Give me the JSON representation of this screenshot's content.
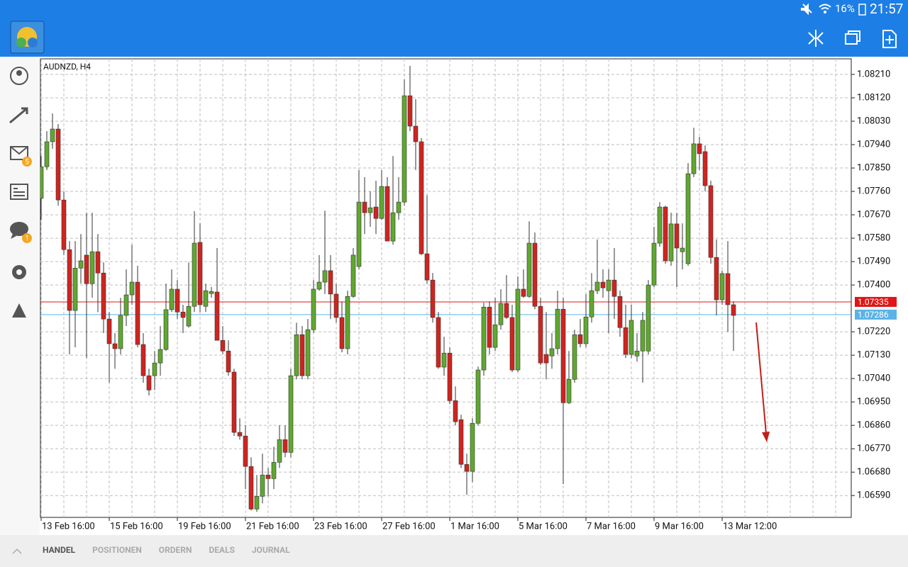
{
  "status_bar": {
    "battery": "16%",
    "time": "21:57"
  },
  "sidebar": {
    "mail_badge": "5",
    "chat_badge": "1"
  },
  "chart_data": {
    "type": "candlestick",
    "title": "AUDNZD, H4",
    "categories": [
      "13 Feb 16:00",
      null,
      null,
      null,
      null,
      null,
      null,
      null,
      null,
      null,
      null,
      null,
      "15 Feb 16:00",
      null,
      null,
      null,
      null,
      null,
      null,
      null,
      null,
      null,
      null,
      null,
      "19 Feb 16:00",
      null,
      null,
      null,
      null,
      null,
      null,
      null,
      null,
      null,
      null,
      null,
      "21 Feb 16:00",
      null,
      null,
      null,
      null,
      null,
      null,
      null,
      null,
      null,
      null,
      null,
      "23 Feb 16:00",
      null,
      null,
      null,
      null,
      null,
      null,
      null,
      null,
      null,
      null,
      null,
      "27 Feb 16:00",
      null,
      null,
      null,
      null,
      null,
      null,
      null,
      null,
      null,
      null,
      null,
      "1 Mar 16:00",
      null,
      null,
      null,
      null,
      null,
      null,
      null,
      null,
      null,
      null,
      null,
      "5 Mar 16:00",
      null,
      null,
      null,
      null,
      null,
      null,
      null,
      null,
      null,
      null,
      null,
      "7 Mar 16:00",
      null,
      null,
      null,
      null,
      null,
      null,
      null,
      null,
      null,
      null,
      null,
      "9 Mar 16:00",
      null,
      null,
      null,
      null,
      null,
      null,
      null,
      null,
      null,
      null,
      null,
      "13 Mar 12:00",
      null,
      null
    ],
    "ohlc": [
      [
        1.07733,
        1.07896,
        1.07651,
        1.07855
      ],
      [
        1.07855,
        1.07992,
        1.07842,
        1.07951
      ],
      [
        1.07951,
        1.0806,
        1.07924,
        1.08
      ],
      [
        1.08,
        1.08019,
        1.07705,
        1.07727
      ],
      [
        1.07727,
        1.0776,
        1.07515,
        1.07536
      ],
      [
        1.07536,
        1.07569,
        1.07133,
        1.07302
      ],
      [
        1.07302,
        1.07569,
        1.0716,
        1.07465
      ],
      [
        1.07465,
        1.07596,
        1.07405,
        1.07493
      ],
      [
        1.07515,
        1.07678,
        1.07119,
        1.07405
      ],
      [
        1.07405,
        1.07678,
        1.07351,
        1.07528
      ],
      [
        1.07528,
        1.07596,
        1.07296,
        1.07446
      ],
      [
        1.07446,
        1.07487,
        1.07215,
        1.07269
      ],
      [
        1.07269,
        1.07296,
        1.07024,
        1.07174
      ],
      [
        1.07174,
        1.07215,
        1.07078,
        1.07155
      ],
      [
        1.07155,
        1.07351,
        1.07133,
        1.07283
      ],
      [
        1.07283,
        1.0746,
        1.07242,
        1.07362
      ],
      [
        1.07362,
        1.07555,
        1.07324,
        1.07411
      ],
      [
        1.07411,
        1.07474,
        1.0716,
        1.07171
      ],
      [
        1.07171,
        1.07215,
        1.07024,
        1.07051
      ],
      [
        1.07051,
        1.07078,
        1.06975,
        1.06996
      ],
      [
        1.07051,
        1.07146,
        1.06996,
        1.071
      ],
      [
        1.071,
        1.07242,
        1.07051,
        1.07152
      ],
      [
        1.07152,
        1.07405,
        1.07146,
        1.07305
      ],
      [
        1.07305,
        1.0746,
        1.07296,
        1.07384
      ],
      [
        1.07384,
        1.07419,
        1.07269,
        1.07296
      ],
      [
        1.07296,
        1.07324,
        1.07215,
        1.07275
      ],
      [
        1.07242,
        1.07487,
        1.07236,
        1.07318
      ],
      [
        1.07318,
        1.07684,
        1.07296,
        1.07561
      ],
      [
        1.07564,
        1.07637,
        1.07296,
        1.07324
      ],
      [
        1.07318,
        1.07405,
        1.07296,
        1.07378
      ],
      [
        1.07367,
        1.07392,
        1.07351,
        1.07375
      ],
      [
        1.07373,
        1.07542,
        1.07187,
        1.07187
      ],
      [
        1.07187,
        1.07242,
        1.07133,
        1.07146
      ],
      [
        1.07146,
        1.07187,
        1.07051,
        1.07065
      ],
      [
        1.07065,
        1.07078,
        1.06819,
        1.06833
      ],
      [
        1.06833,
        1.06887,
        1.06805,
        1.06819
      ],
      [
        1.06819,
        1.0686,
        1.06615,
        1.06702
      ],
      [
        1.06702,
        1.06737,
        1.06533,
        1.06538
      ],
      [
        1.06538,
        1.06669,
        1.06527,
        1.06587
      ],
      [
        1.06587,
        1.06751,
        1.0656,
        1.06669
      ],
      [
        1.06669,
        1.06696,
        1.06587,
        1.06655
      ],
      [
        1.06655,
        1.06778,
        1.06615,
        1.06718
      ],
      [
        1.06718,
        1.0686,
        1.06696,
        1.06805
      ],
      [
        1.06805,
        1.0686,
        1.06737,
        1.06756
      ],
      [
        1.06756,
        1.07078,
        1.06737,
        1.07051
      ],
      [
        1.07051,
        1.07255,
        1.07037,
        1.07209
      ],
      [
        1.07209,
        1.07242,
        1.07037,
        1.07051
      ],
      [
        1.07051,
        1.07269,
        1.07037,
        1.07228
      ],
      [
        1.07228,
        1.07419,
        1.07215,
        1.07384
      ],
      [
        1.07384,
        1.07515,
        1.07378,
        1.07411
      ],
      [
        1.07411,
        1.07686,
        1.07365,
        1.07455
      ],
      [
        1.07455,
        1.07515,
        1.07269,
        1.07365
      ],
      [
        1.07365,
        1.07405,
        1.07255,
        1.07275
      ],
      [
        1.07275,
        1.07337,
        1.07141,
        1.07155
      ],
      [
        1.07155,
        1.07378,
        1.07133,
        1.07356
      ],
      [
        1.07356,
        1.07542,
        1.07351,
        1.07515
      ],
      [
        1.07471,
        1.07842,
        1.0746,
        1.07719
      ],
      [
        1.07719,
        1.07815,
        1.07596,
        1.07678
      ],
      [
        1.07678,
        1.0776,
        1.07624,
        1.07697
      ],
      [
        1.077,
        1.07801,
        1.07596,
        1.07656
      ],
      [
        1.07656,
        1.07842,
        1.07651,
        1.07779
      ],
      [
        1.07779,
        1.07815,
        1.07569,
        1.07569
      ],
      [
        1.07569,
        1.07896,
        1.07555,
        1.07678
      ],
      [
        1.07678,
        1.07815,
        1.07651,
        1.07719
      ],
      [
        1.07719,
        1.08191,
        1.07705,
        1.08128
      ],
      [
        1.08128,
        1.08243,
        1.07992,
        1.08011
      ],
      [
        1.08011,
        1.08115,
        1.07842,
        1.07951
      ],
      [
        1.07951,
        1.07965,
        1.07515,
        1.0752
      ],
      [
        1.0752,
        1.07746,
        1.07405,
        1.07419
      ],
      [
        1.07419,
        1.07446,
        1.07255,
        1.07275
      ],
      [
        1.07275,
        1.07296,
        1.07078,
        1.07084
      ],
      [
        1.07084,
        1.07201,
        1.07051,
        1.07138
      ],
      [
        1.07138,
        1.0716,
        1.06942,
        1.06955
      ],
      [
        1.06955,
        1.0701,
        1.0686,
        1.06874
      ],
      [
        1.06882,
        1.06901,
        1.06696,
        1.0671
      ],
      [
        1.0671,
        1.06751,
        1.06593,
        1.06683
      ],
      [
        1.06683,
        1.06887,
        1.06642,
        1.06868
      ],
      [
        1.06868,
        1.07086,
        1.0686,
        1.07073
      ],
      [
        1.07073,
        1.07332,
        1.07051,
        1.07315
      ],
      [
        1.07315,
        1.07337,
        1.07133,
        1.0716
      ],
      [
        1.0716,
        1.07351,
        1.07146,
        1.07247
      ],
      [
        1.07247,
        1.07384,
        1.07228,
        1.07329
      ],
      [
        1.07329,
        1.07438,
        1.07269,
        1.07275
      ],
      [
        1.07275,
        1.07324,
        1.07065,
        1.07073
      ],
      [
        1.07073,
        1.07433,
        1.07065,
        1.07384
      ],
      [
        1.07384,
        1.0746,
        1.07351,
        1.07356
      ],
      [
        1.07356,
        1.07645,
        1.07351,
        1.07561
      ],
      [
        1.07561,
        1.07602,
        1.07307,
        1.07318
      ],
      [
        1.07318,
        1.07351,
        1.07092,
        1.071
      ],
      [
        1.07133,
        1.07296,
        1.07037,
        1.071
      ],
      [
        1.07127,
        1.07215,
        1.07078,
        1.07155
      ],
      [
        1.07155,
        1.07378,
        1.07133,
        1.07307
      ],
      [
        1.07307,
        1.07351,
        1.06634,
        1.06947
      ],
      [
        1.06947,
        1.07146,
        1.06942,
        1.07037
      ],
      [
        1.07037,
        1.07228,
        1.07024,
        1.07209
      ],
      [
        1.07209,
        1.07269,
        1.0716,
        1.07174
      ],
      [
        1.07174,
        1.07365,
        1.0716,
        1.07277
      ],
      [
        1.07277,
        1.07446,
        1.07255,
        1.07378
      ],
      [
        1.07378,
        1.07575,
        1.07365,
        1.07411
      ],
      [
        1.07411,
        1.0746,
        1.07351,
        1.07389
      ],
      [
        1.07378,
        1.0746,
        1.07215,
        1.07419
      ],
      [
        1.07419,
        1.07542,
        1.07269,
        1.07356
      ],
      [
        1.07356,
        1.07378,
        1.07201,
        1.07236
      ],
      [
        1.07236,
        1.07324,
        1.07119,
        1.07133
      ],
      [
        1.07133,
        1.07324,
        1.07119,
        1.07264
      ],
      [
        1.07127,
        1.07215,
        1.07105,
        1.07146
      ],
      [
        1.07146,
        1.07296,
        1.07024,
        1.07264
      ],
      [
        1.07146,
        1.07419,
        1.07133,
        1.074
      ],
      [
        1.074,
        1.07624,
        1.07392,
        1.07561
      ],
      [
        1.07561,
        1.07719,
        1.07547,
        1.077
      ],
      [
        1.077,
        1.07705,
        1.07482,
        1.07493
      ],
      [
        1.07493,
        1.07678,
        1.07474,
        1.07635
      ],
      [
        1.07635,
        1.07678,
        1.07392,
        1.07542
      ],
      [
        1.07528,
        1.07637,
        1.0746,
        1.07542
      ],
      [
        1.07482,
        1.07869,
        1.07474,
        1.07828
      ],
      [
        1.07828,
        1.08005,
        1.07815,
        1.07943
      ],
      [
        1.07943,
        1.0797,
        1.07842,
        1.07905
      ],
      [
        1.07913,
        1.07937,
        1.0776,
        1.07782
      ],
      [
        1.07782,
        1.07801,
        1.07482,
        1.07506
      ],
      [
        1.07506,
        1.07575,
        1.07283,
        1.07343
      ],
      [
        1.07343,
        1.07455,
        1.07324,
        1.07444
      ],
      [
        1.07444,
        1.07569,
        1.0722,
        1.07324
      ],
      [
        1.07324,
        1.07337,
        1.07146,
        1.07283
      ]
    ],
    "up_color": "#5fa82f",
    "down_color": "#d0241f",
    "ylim": [
      1.06506,
      1.0827
    ],
    "yticks": [
      {
        "value": 1.0821,
        "label": "1.08210"
      },
      {
        "value": 1.0812,
        "label": "1.08120"
      },
      {
        "value": 1.0803,
        "label": "1.08030"
      },
      {
        "value": 1.0794,
        "label": "1.07940"
      },
      {
        "value": 1.0785,
        "label": "1.07850"
      },
      {
        "value": 1.0776,
        "label": "1.07760"
      },
      {
        "value": 1.0767,
        "label": "1.07670"
      },
      {
        "value": 1.0758,
        "label": "1.07580"
      },
      {
        "value": 1.0749,
        "label": "1.07490"
      },
      {
        "value": 1.074,
        "label": "1.07400"
      },
      {
        "value": 1.0722,
        "label": "1.07220"
      },
      {
        "value": 1.0713,
        "label": "1.07130"
      },
      {
        "value": 1.0704,
        "label": "1.07040"
      },
      {
        "value": 1.0695,
        "label": "1.06950"
      },
      {
        "value": 1.0686,
        "label": "1.06860"
      },
      {
        "value": 1.0677,
        "label": "1.06770"
      },
      {
        "value": 1.0668,
        "label": "1.06680"
      },
      {
        "value": 1.0659,
        "label": "1.06590"
      }
    ],
    "grid": true,
    "price_lines": [
      {
        "value": 1.07335,
        "color": "#e01515"
      },
      {
        "value": 1.07286,
        "color": "#5ab2e6"
      }
    ]
  },
  "tabs": [
    "HANDEL",
    "POSITIONEN",
    "ORDERN",
    "DEALS",
    "JOURNAL"
  ]
}
